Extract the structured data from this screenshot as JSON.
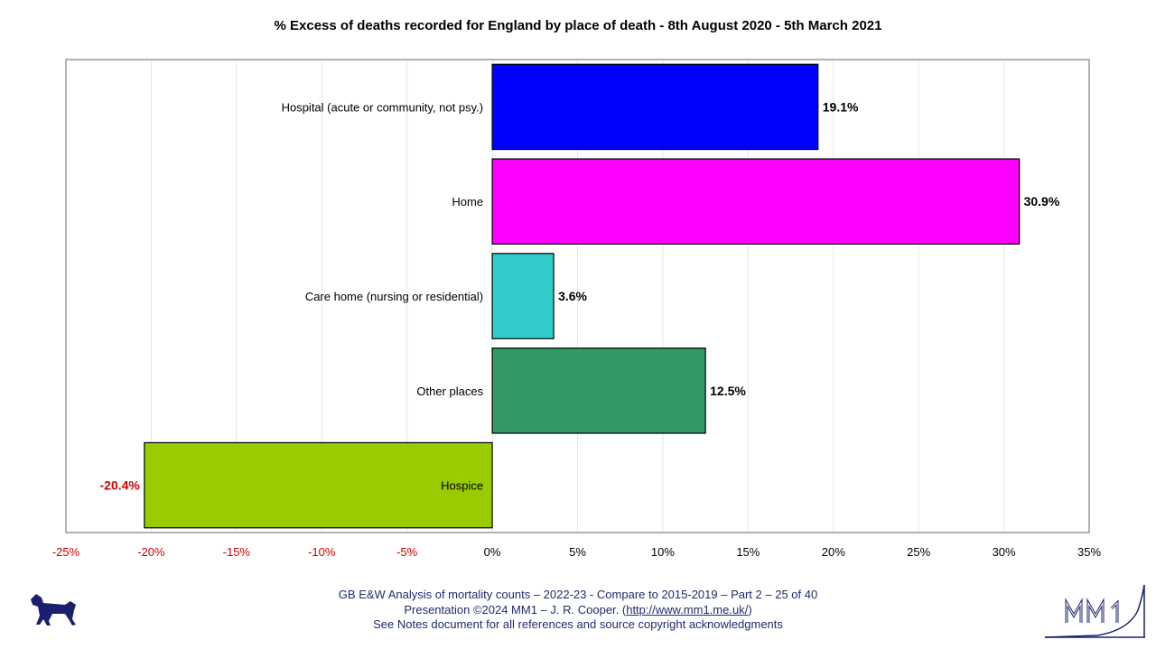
{
  "chart_data": {
    "type": "bar",
    "orientation": "horizontal",
    "title": "% Excess of deaths recorded for England by place of death - 8th August 2020 - 5th March 2021",
    "categories": [
      "Hospital (acute or community, not psy.)",
      "Home",
      "Care home (nursing or residential)",
      "Other places",
      "Hospice"
    ],
    "values": [
      19.1,
      30.9,
      3.6,
      12.5,
      -20.4
    ],
    "value_labels": [
      "19.1%",
      "30.9%",
      "3.6%",
      "12.5%",
      "-20.4%"
    ],
    "colors": [
      "#0000ff",
      "#ff00ff",
      "#33cccc",
      "#339966",
      "#99cc00"
    ],
    "xlim": [
      -25,
      35
    ],
    "xticks": [
      -25,
      -20,
      -15,
      -10,
      -5,
      0,
      5,
      10,
      15,
      20,
      25,
      30,
      35
    ],
    "xtick_labels": [
      "-25%",
      "-20%",
      "-15%",
      "-10%",
      "-5%",
      "0%",
      "5%",
      "10%",
      "15%",
      "20%",
      "25%",
      "30%",
      "35%"
    ],
    "negative_color": "#cc0000",
    "grid": true
  },
  "footer": {
    "line1": "GB E&W Analysis of mortality counts – 2022-23 - Compare to 2015-2019 – Part 2 – 25 of 40",
    "line2_prefix": "Presentation ©2024 MM1 – J. R. Cooper. (",
    "link_text": "http://www.mm1.me.uk/",
    "line2_suffix": ")",
    "line3": "See Notes document for all references and source copyright acknowledgments"
  },
  "logos": {
    "left": "dog-icon",
    "right": "mm1-logo-icon"
  }
}
